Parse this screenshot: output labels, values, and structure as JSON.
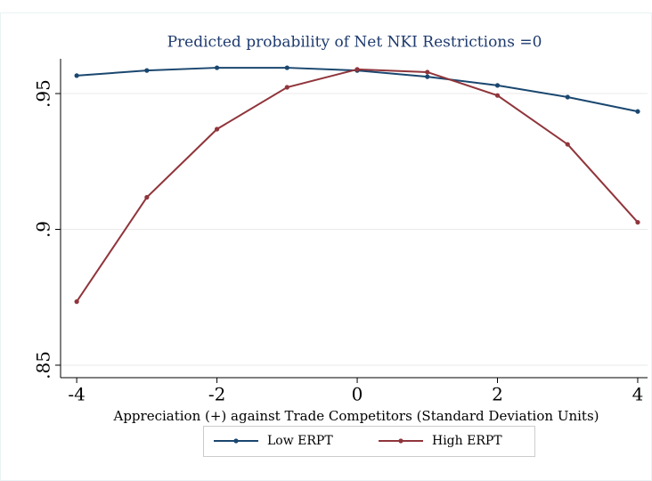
{
  "chart_data": {
    "type": "line",
    "title": "Predicted probability of Net NKI Restrictions =0",
    "x_label": "Appreciation (+) against Trade Competitors (Standard Deviation Units)",
    "x": [
      -4,
      -3,
      -2,
      -1,
      0,
      1,
      2,
      3,
      4
    ],
    "series": [
      {
        "name": "Low ERPT",
        "color": "#1a476f",
        "values": [
          0.9566,
          0.9585,
          0.9595,
          0.9595,
          0.9585,
          0.9562,
          0.953,
          0.9487,
          0.9434
        ]
      },
      {
        "name": "High ERPT",
        "color": "#90353b",
        "values": [
          0.8734,
          0.9118,
          0.9369,
          0.9523,
          0.9589,
          0.9579,
          0.9493,
          0.9313,
          0.9026
        ]
      }
    ],
    "xlim": [
      -4.23,
      4.14
    ],
    "xticks": [
      -4,
      -2,
      0,
      2,
      4
    ],
    "ylim": [
      0.8454,
      0.9628
    ],
    "yticks": [
      {
        "value": 0.85,
        "label": ".85"
      },
      {
        "value": 0.9,
        "label": ".9"
      },
      {
        "value": 0.95,
        "label": ".95"
      }
    ],
    "grid": true
  }
}
